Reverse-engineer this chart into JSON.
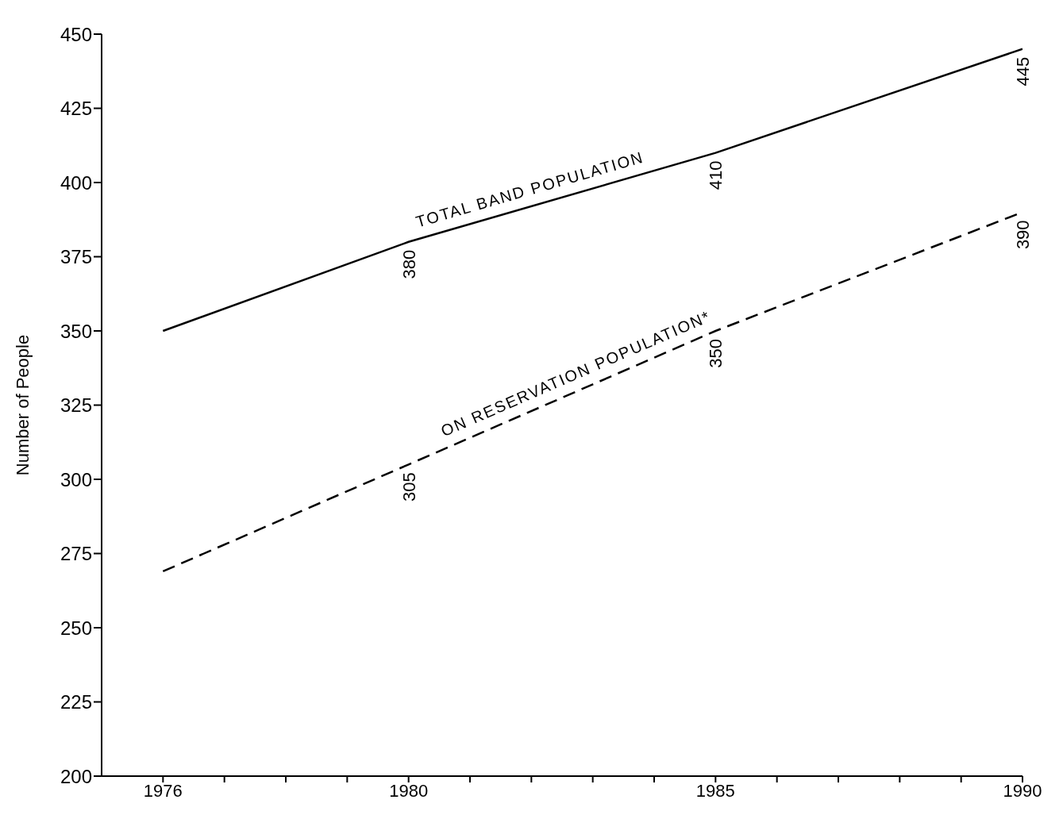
{
  "chart_data": {
    "type": "line",
    "ylabel": "Number of People",
    "x": [
      1976,
      1980,
      1985,
      1990
    ],
    "xlim": [
      1975,
      1990
    ],
    "xticks": [
      1976,
      {
        "value": 1977,
        "label": null
      },
      {
        "value": 1978,
        "label": null
      },
      {
        "value": 1979,
        "label": null
      },
      1980,
      {
        "value": 1981,
        "label": null
      },
      {
        "value": 1982,
        "label": null
      },
      {
        "value": 1983,
        "label": null
      },
      {
        "value": 1984,
        "label": null
      },
      1985,
      {
        "value": 1986,
        "label": null
      },
      {
        "value": 1987,
        "label": null
      },
      {
        "value": 1988,
        "label": null
      },
      {
        "value": 1989,
        "label": null
      },
      1990
    ],
    "ylim": [
      200,
      450
    ],
    "yticks": [
      200,
      225,
      250,
      275,
      300,
      325,
      350,
      375,
      400,
      425,
      450
    ],
    "marker": "none",
    "series": [
      {
        "name": "TOTAL BAND POPULATION",
        "color": "#000000",
        "line_style": "solid",
        "values": [
          350,
          380,
          410,
          445
        ],
        "value_labels": [
          null,
          "380",
          "410",
          "445"
        ]
      },
      {
        "name": "ON RESERVATION POPULATION*",
        "color": "#000000",
        "line_style": "dashed",
        "values": [
          269,
          305,
          350,
          390
        ],
        "value_labels": [
          null,
          "305",
          "350",
          "390"
        ]
      }
    ]
  }
}
